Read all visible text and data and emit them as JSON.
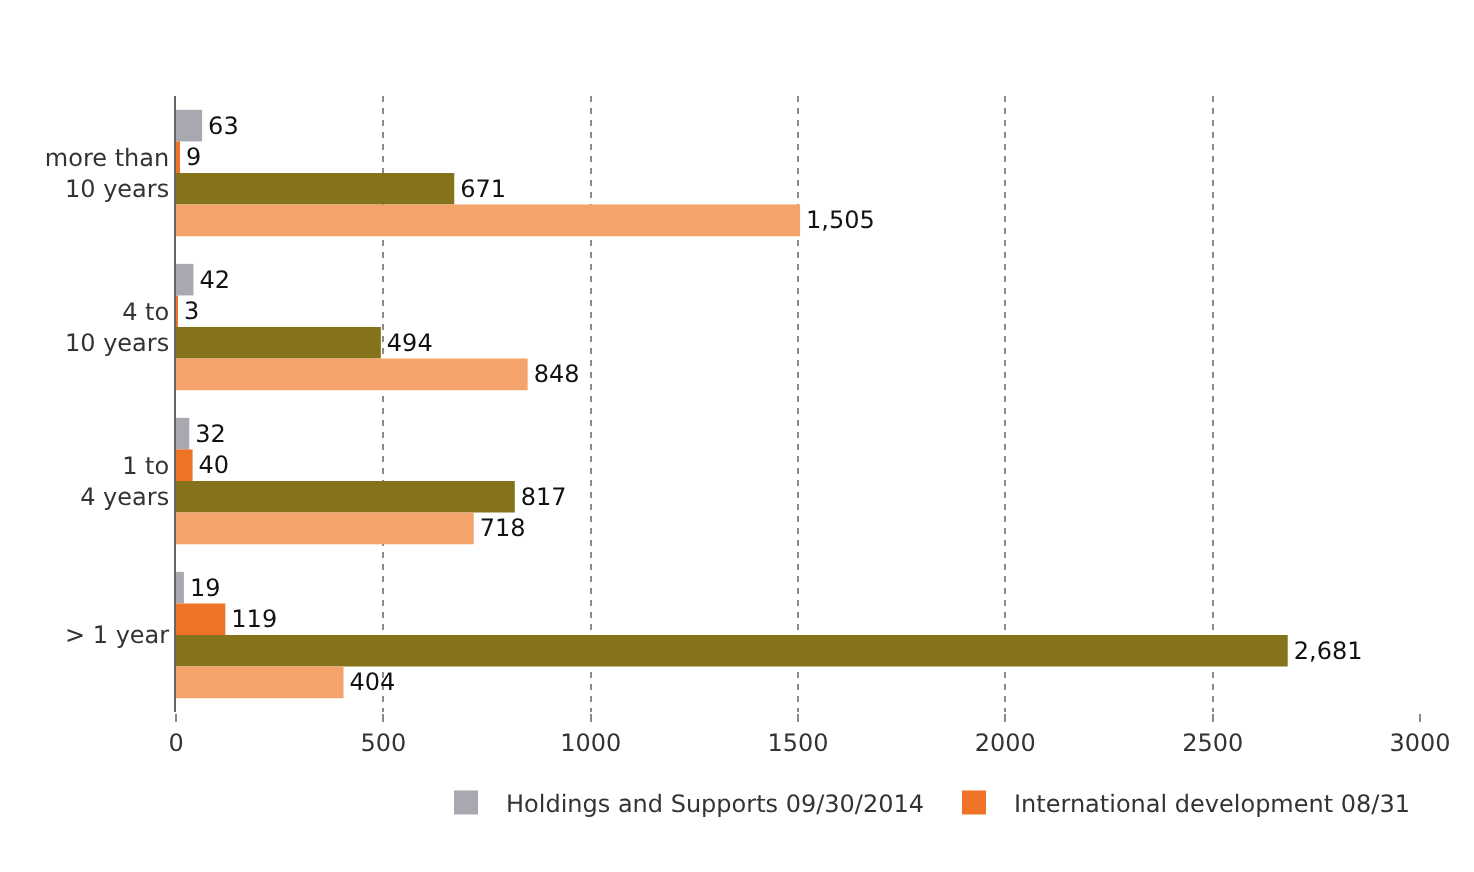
{
  "chart_data": {
    "type": "bar",
    "orientation": "horizontal",
    "categories": [
      "more than 10 years",
      "4 to 10 years",
      "1 to 4 years",
      "> 1 year"
    ],
    "series": [
      {
        "name": "Holdings and Supports 09/30/2014",
        "color": "#a7a8b0",
        "values": [
          63,
          42,
          32,
          19
        ],
        "value_labels": [
          "63",
          "42",
          "32",
          "19"
        ]
      },
      {
        "name": "International development 08/31",
        "color": "#ee7326",
        "values": [
          9,
          3,
          40,
          119
        ],
        "value_labels": [
          "9",
          "3",
          "40",
          "119"
        ]
      },
      {
        "color": "#85731c",
        "values": [
          671,
          494,
          817,
          2681
        ],
        "value_labels": [
          "671",
          "494",
          "817",
          "2,681"
        ]
      },
      {
        "color": "#f4a36a",
        "values": [
          1505,
          848,
          718,
          404
        ],
        "value_labels": [
          "1,505",
          "848",
          "718",
          "404"
        ]
      }
    ],
    "xlim": [
      0,
      3000
    ],
    "xticks": [
      0,
      500,
      1000,
      1500,
      2000,
      2500,
      3000
    ],
    "grid": "x",
    "legend": "bottom right"
  }
}
